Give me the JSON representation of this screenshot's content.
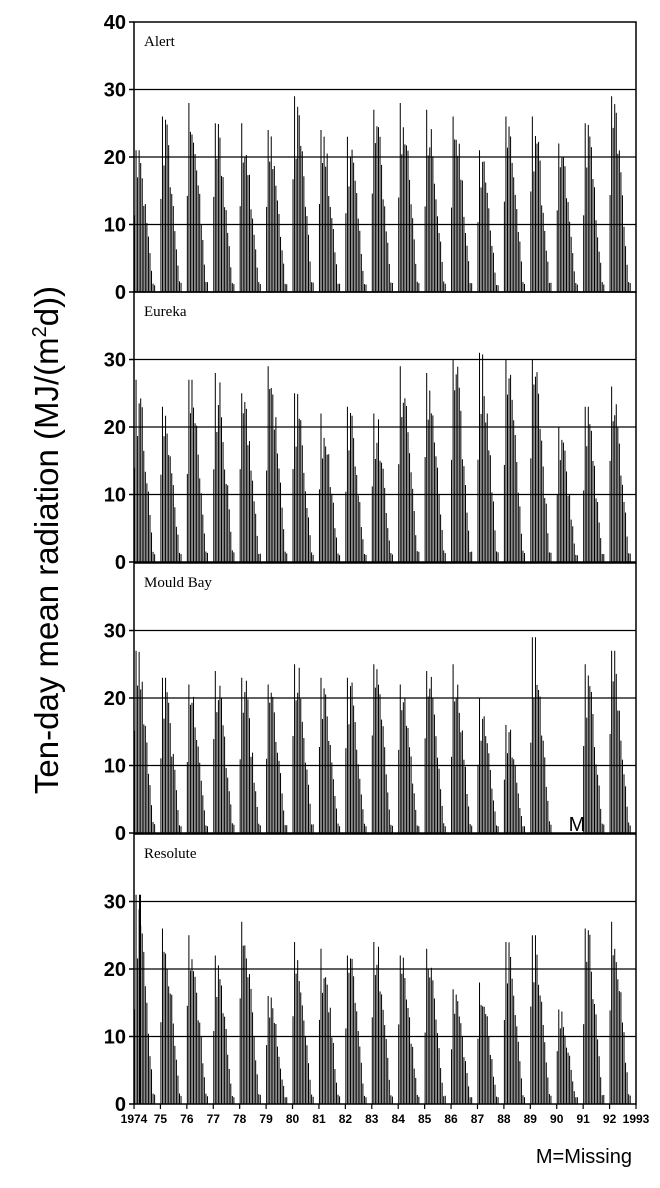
{
  "chart_data": {
    "type": "bar",
    "ylabel_main": "Ten-day mean radiation (MJ/(m",
    "ylabel_sup": "2",
    "ylabel_tail": "d))",
    "ylim": [
      0,
      40
    ],
    "yticks": [
      "0",
      "10",
      "20",
      "30",
      "40"
    ],
    "xlim": [
      1974,
      1993
    ],
    "xticks": [
      {
        "value": 1974,
        "label": "1974"
      },
      {
        "value": 1975,
        "label": "75"
      },
      {
        "value": 1976,
        "label": "76"
      },
      {
        "value": 1977,
        "label": "77"
      },
      {
        "value": 1978,
        "label": "78"
      },
      {
        "value": 1979,
        "label": "79"
      },
      {
        "value": 1980,
        "label": "80"
      },
      {
        "value": 1981,
        "label": "81"
      },
      {
        "value": 1982,
        "label": "82"
      },
      {
        "value": 1983,
        "label": "83"
      },
      {
        "value": 1984,
        "label": "84"
      },
      {
        "value": 1985,
        "label": "85"
      },
      {
        "value": 1986,
        "label": "86"
      },
      {
        "value": 1987,
        "label": "87"
      },
      {
        "value": 1988,
        "label": "88"
      },
      {
        "value": 1989,
        "label": "89"
      },
      {
        "value": 1990,
        "label": "90"
      },
      {
        "value": 1991,
        "label": "91"
      },
      {
        "value": 1992,
        "label": "92"
      },
      {
        "value": 1993,
        "label": "1993"
      }
    ],
    "gridlines_at": [
      10,
      20,
      30
    ],
    "panels": [
      {
        "station": "Alert",
        "annual_peak": [
          21,
          26,
          28,
          25,
          25,
          24,
          29,
          24,
          23,
          27,
          28,
          27,
          26,
          21,
          26,
          26,
          22,
          25,
          29
        ],
        "missing_years": []
      },
      {
        "station": "Eureka",
        "annual_peak": [
          27,
          23,
          27,
          28,
          25,
          29,
          25,
          22,
          23,
          22,
          29,
          28,
          30,
          31,
          30,
          30,
          20,
          23,
          26
        ],
        "missing_years": []
      },
      {
        "station": "Mould Bay",
        "annual_peak": [
          27,
          23,
          22,
          24,
          23,
          22,
          25,
          23,
          23,
          25,
          22,
          24,
          25,
          20,
          16,
          29,
          0,
          25,
          27
        ],
        "missing_years": [
          1990
        ],
        "missing_label": "M"
      },
      {
        "station": "Resolute",
        "annual_peak": [
          31,
          26,
          25,
          22,
          27,
          16,
          24,
          23,
          22,
          24,
          22,
          23,
          17,
          18,
          24,
          25,
          14,
          26,
          27
        ],
        "missing_years": [],
        "early_spike": 31
      }
    ]
  },
  "note": "M=Missing"
}
